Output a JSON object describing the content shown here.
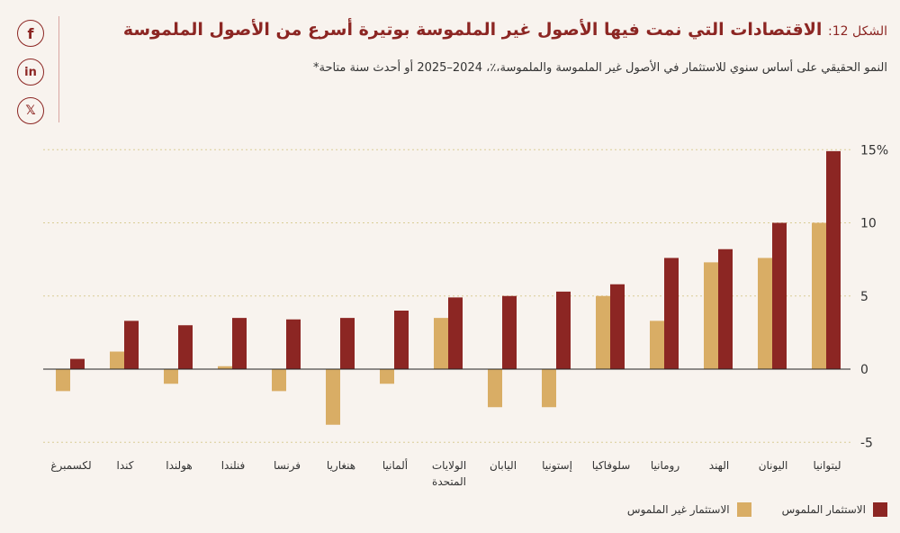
{
  "figure": {
    "prefix": "الشكل 12:",
    "title": "الاقتصادات التي نمت فيها الأصول غير الملموسة بوتيرة أسرع من الأصول الملموسة",
    "subtitle": "النمو الحقيقي على أساس سنوي للاستثمار في الأصول غير الملموسة والملموسة،٪، 2024–2025 أو أحدث سنة متاحة*"
  },
  "social": {
    "facebook": "f",
    "linkedin": "in",
    "x": "𝕏"
  },
  "colors": {
    "intangible": "#d9ad65",
    "tangible": "#8c2623",
    "grid": "#d9cc95",
    "accent": "#8c2623"
  },
  "chart_data": {
    "type": "bar",
    "categories": [
      "ليتوانيا",
      "اليونان",
      "الهند",
      "رومانيا",
      "سلوفاكيا",
      "إستونيا",
      "اليابان",
      "الولايات المتحدة",
      "ألمانيا",
      "هنغاريا",
      "فرنسا",
      "فنلندا",
      "هولندا",
      "كندا",
      "لكسمبرغ"
    ],
    "series": [
      {
        "name": "الاستثمار غير الملموس",
        "values": [
          10,
          7.6,
          7.3,
          3.3,
          5.0,
          -2.6,
          -2.6,
          3.5,
          -1.0,
          -3.8,
          -1.5,
          0.2,
          -1.0,
          1.2,
          -1.5
        ]
      },
      {
        "name": "الاستثمار الملموس",
        "values": [
          14.9,
          10.0,
          8.2,
          7.6,
          5.8,
          5.3,
          5.0,
          4.9,
          4.0,
          3.5,
          3.4,
          3.5,
          3.0,
          3.3,
          0.7
        ]
      }
    ],
    "yticks": [
      "15%",
      "10",
      "5",
      "0",
      "-5"
    ],
    "ylim": [
      -5,
      15
    ],
    "grid": true,
    "legend_position": "bottom-right"
  }
}
